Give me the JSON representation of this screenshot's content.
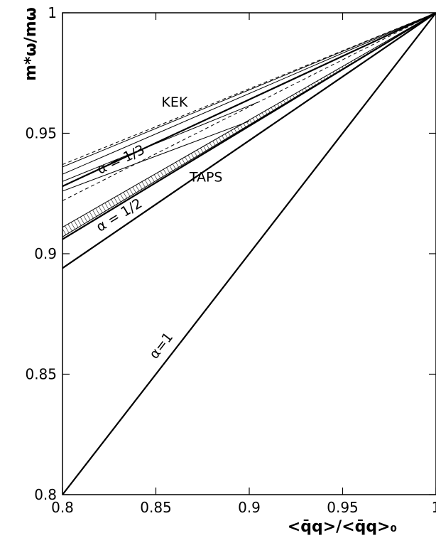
{
  "chart_data": {
    "type": "line",
    "title": "",
    "xlabel": "<q̄q>/<q̄q>₀",
    "ylabel": "m*ω/mω",
    "xlim": [
      0.8,
      1.0
    ],
    "ylim": [
      0.8,
      1.0
    ],
    "grid": false,
    "x_ticks": [
      {
        "value": 0.8,
        "label": "0.8"
      },
      {
        "value": 0.85,
        "label": "0.85"
      },
      {
        "value": 0.9,
        "label": "0.9"
      },
      {
        "value": 0.95,
        "label": "0.95"
      },
      {
        "value": 1.0,
        "label": "1"
      }
    ],
    "y_ticks": [
      {
        "value": 0.8,
        "label": "0.8"
      },
      {
        "value": 0.85,
        "label": "0.85"
      },
      {
        "value": 0.9,
        "label": "0.9"
      },
      {
        "value": 0.95,
        "label": "0.95"
      },
      {
        "value": 1.0,
        "label": "1"
      }
    ],
    "series": [
      {
        "style": "thick",
        "x": [
          0.8,
          1.0
        ],
        "y": [
          0.8,
          1.0
        ]
      },
      {
        "style": "thick",
        "x": [
          0.8,
          1.0
        ],
        "y": [
          0.894,
          1.0
        ]
      },
      {
        "style": "thick",
        "x": [
          0.8,
          1.0
        ],
        "y": [
          0.906,
          1.0
        ]
      },
      {
        "style": "thick",
        "x": [
          0.8,
          1.0
        ],
        "y": [
          0.928,
          1.0
        ]
      },
      {
        "style": "thin",
        "x": [
          0.8,
          1.0
        ],
        "y": [
          0.936,
          1.0
        ]
      },
      {
        "style": "thin",
        "x": [
          0.8,
          1.0
        ],
        "y": [
          0.933,
          1.0
        ]
      },
      {
        "style": "thin",
        "x": [
          0.8,
          0.905
        ],
        "y": [
          0.93,
          0.963
        ]
      },
      {
        "style": "thin",
        "x": [
          0.8,
          0.9
        ],
        "y": [
          0.926,
          0.955
        ]
      },
      {
        "style": "dashed",
        "x": [
          0.8,
          1.0
        ],
        "y": [
          0.937,
          1.0
        ]
      },
      {
        "style": "dashed",
        "x": [
          0.8,
          1.0
        ],
        "y": [
          0.922,
          1.0
        ]
      }
    ],
    "bands": [
      {
        "pattern": "hatched",
        "x": [
          0.8,
          1.0
        ],
        "y_upper": [
          0.911,
          1.0
        ],
        "y_lower": [
          0.907,
          1.0
        ]
      }
    ],
    "annotations": [
      {
        "text": "KEK",
        "x": 0.853,
        "y": 0.961
      },
      {
        "text": "TAPS",
        "x": 0.868,
        "y": 0.93
      },
      {
        "text": "α = 1/3",
        "x": 0.82,
        "y": 0.933,
        "slope": 0.36
      },
      {
        "text": "α = 1/2",
        "x": 0.82,
        "y": 0.909,
        "slope": 0.47
      },
      {
        "text": "α=1",
        "x": 0.85,
        "y": 0.856,
        "slope": 1.0
      }
    ]
  }
}
